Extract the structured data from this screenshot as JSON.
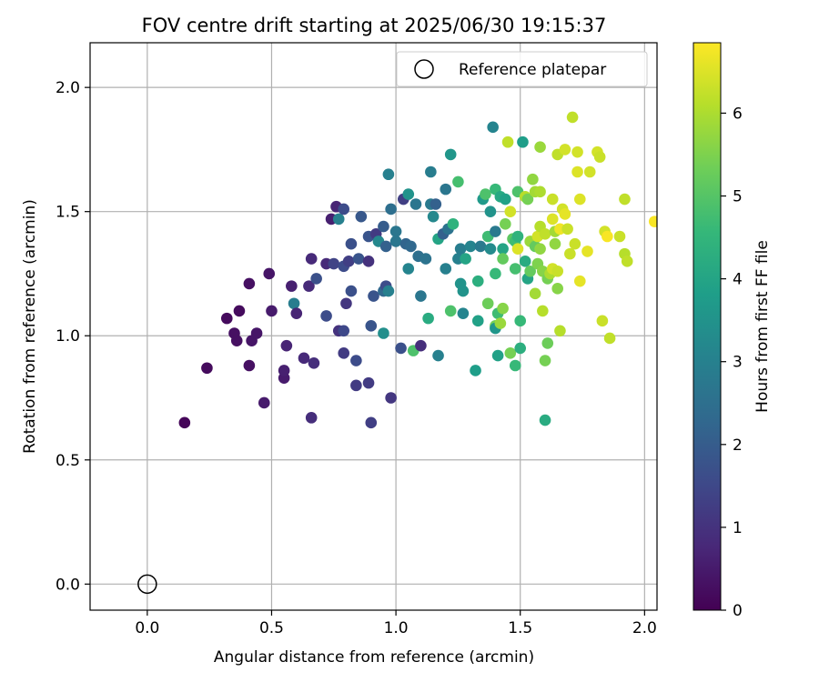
{
  "chart_data": {
    "type": "scatter",
    "title": "FOV centre drift starting at 2025/06/30 19:15:37",
    "xlabel": "Angular distance from reference (arcmin)",
    "ylabel": "Rotation from reference (arcmin)",
    "xlim": [
      -0.23,
      2.05
    ],
    "ylim": [
      -0.105,
      2.18
    ],
    "xticks": [
      "0.0",
      "0.5",
      "1.0",
      "1.5",
      "2.0"
    ],
    "yticks": [
      "0.0",
      "0.5",
      "1.0",
      "1.5",
      "2.0"
    ],
    "grid": true,
    "legend": {
      "placement": "top-right",
      "entries": [
        "Reference platepar"
      ]
    },
    "reference_point": {
      "x": 0.0,
      "y": 0.0
    },
    "colorbar": {
      "label": "Hours from first FF file",
      "colormap": "viridis",
      "range": [
        0,
        6.85
      ],
      "ticks": [
        "0",
        "1",
        "2",
        "3",
        "4",
        "5",
        "6"
      ]
    },
    "points": [
      [
        0.15,
        0.65,
        0.1
      ],
      [
        0.24,
        0.87,
        0.2
      ],
      [
        0.32,
        1.07,
        0.2
      ],
      [
        0.35,
        1.01,
        0.3
      ],
      [
        0.36,
        0.98,
        0.3
      ],
      [
        0.37,
        1.1,
        0.2
      ],
      [
        0.41,
        1.21,
        0.3
      ],
      [
        0.41,
        0.88,
        0.3
      ],
      [
        0.42,
        0.98,
        0.4
      ],
      [
        0.44,
        1.01,
        0.4
      ],
      [
        0.47,
        0.73,
        0.5
      ],
      [
        0.49,
        1.25,
        0.4
      ],
      [
        0.5,
        1.1,
        0.5
      ],
      [
        0.55,
        0.83,
        0.5
      ],
      [
        0.55,
        0.86,
        0.6
      ],
      [
        0.56,
        0.96,
        0.7
      ],
      [
        0.58,
        1.2,
        0.6
      ],
      [
        0.59,
        1.13,
        2.9
      ],
      [
        0.6,
        1.09,
        0.7
      ],
      [
        0.63,
        0.91,
        0.8
      ],
      [
        0.65,
        1.2,
        0.8
      ],
      [
        0.66,
        1.31,
        0.8
      ],
      [
        0.66,
        0.67,
        0.9
      ],
      [
        0.67,
        0.89,
        0.9
      ],
      [
        0.68,
        1.23,
        1.7
      ],
      [
        0.72,
        1.29,
        0.8
      ],
      [
        0.72,
        1.08,
        1.6
      ],
      [
        0.74,
        1.47,
        0.6
      ],
      [
        0.75,
        1.29,
        1.4
      ],
      [
        0.76,
        1.52,
        0.7
      ],
      [
        0.77,
        1.02,
        1.0
      ],
      [
        0.77,
        1.47,
        3.0
      ],
      [
        0.79,
        1.28,
        1.6
      ],
      [
        0.79,
        1.51,
        1.6
      ],
      [
        0.79,
        0.93,
        1.2
      ],
      [
        0.79,
        1.02,
        1.5
      ],
      [
        0.8,
        1.13,
        1.1
      ],
      [
        0.81,
        1.3,
        1.3
      ],
      [
        0.82,
        1.37,
        1.7
      ],
      [
        0.82,
        1.18,
        1.7
      ],
      [
        0.84,
        0.8,
        1.2
      ],
      [
        0.84,
        0.9,
        1.6
      ],
      [
        0.85,
        1.31,
        1.8
      ],
      [
        0.86,
        1.48,
        1.9
      ],
      [
        0.89,
        0.81,
        1.2
      ],
      [
        0.89,
        1.4,
        1.8
      ],
      [
        0.89,
        1.3,
        1.0
      ],
      [
        0.9,
        0.65,
        1.3
      ],
      [
        0.9,
        1.04,
        1.8
      ],
      [
        0.91,
        1.16,
        1.8
      ],
      [
        0.92,
        1.41,
        1.2
      ],
      [
        0.93,
        1.38,
        3.2
      ],
      [
        0.95,
        1.44,
        2.0
      ],
      [
        0.95,
        1.18,
        2.3
      ],
      [
        0.95,
        1.01,
        3.4
      ],
      [
        0.96,
        1.36,
        2.1
      ],
      [
        0.96,
        1.2,
        1.6
      ],
      [
        0.97,
        1.65,
        3.0
      ],
      [
        0.97,
        1.18,
        3.0
      ],
      [
        0.98,
        0.75,
        1.1
      ],
      [
        0.98,
        1.51,
        2.5
      ],
      [
        1.0,
        1.42,
        2.7
      ],
      [
        1.0,
        1.38,
        2.7
      ],
      [
        1.02,
        0.95,
        1.7
      ],
      [
        1.03,
        1.55,
        1.3
      ],
      [
        1.04,
        1.37,
        2.2
      ],
      [
        1.05,
        1.57,
        3.5
      ],
      [
        1.05,
        1.27,
        3.1
      ],
      [
        1.06,
        1.36,
        2.3
      ],
      [
        1.07,
        0.94,
        4.9
      ],
      [
        1.08,
        1.53,
        2.7
      ],
      [
        1.09,
        1.32,
        2.5
      ],
      [
        1.1,
        1.16,
        2.7
      ],
      [
        1.1,
        0.96,
        0.9
      ],
      [
        1.12,
        1.31,
        2.6
      ],
      [
        1.13,
        1.07,
        4.2
      ],
      [
        1.14,
        1.66,
        2.9
      ],
      [
        1.14,
        1.53,
        2.8
      ],
      [
        1.15,
        1.48,
        3.2
      ],
      [
        1.16,
        1.53,
        2.1
      ],
      [
        1.17,
        0.92,
        3.0
      ],
      [
        1.17,
        1.39,
        4.0
      ],
      [
        1.19,
        1.41,
        2.1
      ],
      [
        1.2,
        1.27,
        3.0
      ],
      [
        1.2,
        1.59,
        2.7
      ],
      [
        1.21,
        1.43,
        2.6
      ],
      [
        1.22,
        1.73,
        3.6
      ],
      [
        1.22,
        1.1,
        4.9
      ],
      [
        1.23,
        1.45,
        4.4
      ],
      [
        1.25,
        1.62,
        4.8
      ],
      [
        1.25,
        1.31,
        3.0
      ],
      [
        1.26,
        1.35,
        2.9
      ],
      [
        1.26,
        1.21,
        3.5
      ],
      [
        1.27,
        1.09,
        3.1
      ],
      [
        1.27,
        1.18,
        3.5
      ],
      [
        1.28,
        1.31,
        4.0
      ],
      [
        1.3,
        1.36,
        3.1
      ],
      [
        1.32,
        0.86,
        3.8
      ],
      [
        1.33,
        1.22,
        4.3
      ],
      [
        1.33,
        1.06,
        3.9
      ],
      [
        1.34,
        1.36,
        2.8
      ],
      [
        1.35,
        1.55,
        3.7
      ],
      [
        1.36,
        1.57,
        4.9
      ],
      [
        1.37,
        1.13,
        5.3
      ],
      [
        1.37,
        1.4,
        4.7
      ],
      [
        1.38,
        1.35,
        3.3
      ],
      [
        1.38,
        1.5,
        3.5
      ],
      [
        1.39,
        1.84,
        3.1
      ],
      [
        1.4,
        1.04,
        5.4
      ],
      [
        1.4,
        1.59,
        4.6
      ],
      [
        1.4,
        1.03,
        3.6
      ],
      [
        1.4,
        1.25,
        4.6
      ],
      [
        1.4,
        1.42,
        2.8
      ],
      [
        1.41,
        0.92,
        3.9
      ],
      [
        1.41,
        1.09,
        4.7
      ],
      [
        1.42,
        1.05,
        5.8
      ],
      [
        1.42,
        1.56,
        4.1
      ],
      [
        1.43,
        1.35,
        4.0
      ],
      [
        1.43,
        1.31,
        5.2
      ],
      [
        1.43,
        1.11,
        5.6
      ],
      [
        1.44,
        1.55,
        3.9
      ],
      [
        1.44,
        1.45,
        5.4
      ],
      [
        1.45,
        1.78,
        6.2
      ],
      [
        1.46,
        0.93,
        5.4
      ],
      [
        1.46,
        1.5,
        6.4
      ],
      [
        1.47,
        1.39,
        5.1
      ],
      [
        1.48,
        1.27,
        4.8
      ],
      [
        1.48,
        0.88,
        4.6
      ],
      [
        1.48,
        1.38,
        4.7
      ],
      [
        1.49,
        1.58,
        4.9
      ],
      [
        1.49,
        1.4,
        4.4
      ],
      [
        1.49,
        1.35,
        6.5
      ],
      [
        1.5,
        0.95,
        4.3
      ],
      [
        1.5,
        1.06,
        4.6
      ],
      [
        1.51,
        1.78,
        3.8
      ],
      [
        1.52,
        1.3,
        4.2
      ],
      [
        1.52,
        1.56,
        6.1
      ],
      [
        1.53,
        1.55,
        5.4
      ],
      [
        1.53,
        1.23,
        4.0
      ],
      [
        1.54,
        1.38,
        5.8
      ],
      [
        1.54,
        1.26,
        5.2
      ],
      [
        1.55,
        1.63,
        5.7
      ],
      [
        1.56,
        1.58,
        5.9
      ],
      [
        1.56,
        1.17,
        5.9
      ],
      [
        1.56,
        1.36,
        5.2
      ],
      [
        1.57,
        1.4,
        6.4
      ],
      [
        1.57,
        1.29,
        5.5
      ],
      [
        1.58,
        1.76,
        5.8
      ],
      [
        1.58,
        1.44,
        6.1
      ],
      [
        1.58,
        1.35,
        5.7
      ],
      [
        1.58,
        1.58,
        6.0
      ],
      [
        1.59,
        1.26,
        5.6
      ],
      [
        1.59,
        1.1,
        6.1
      ],
      [
        1.6,
        0.66,
        4.2
      ],
      [
        1.6,
        0.9,
        5.4
      ],
      [
        1.6,
        1.41,
        6.2
      ],
      [
        1.61,
        1.23,
        5.4
      ],
      [
        1.61,
        0.97,
        5.3
      ],
      [
        1.62,
        1.25,
        6.0
      ],
      [
        1.63,
        1.27,
        6.4
      ],
      [
        1.63,
        1.47,
        6.5
      ],
      [
        1.63,
        1.55,
        6.3
      ],
      [
        1.64,
        1.42,
        5.9
      ],
      [
        1.64,
        1.37,
        5.7
      ],
      [
        1.65,
        1.26,
        6.3
      ],
      [
        1.65,
        1.73,
        6.2
      ],
      [
        1.65,
        1.19,
        5.6
      ],
      [
        1.66,
        1.43,
        6.7
      ],
      [
        1.66,
        1.02,
        6.1
      ],
      [
        1.67,
        1.51,
        6.4
      ],
      [
        1.68,
        1.75,
        6.4
      ],
      [
        1.68,
        1.49,
        6.6
      ],
      [
        1.69,
        1.43,
        6.3
      ],
      [
        1.7,
        1.33,
        6.3
      ],
      [
        1.71,
        1.88,
        6.2
      ],
      [
        1.72,
        1.37,
        6.3
      ],
      [
        1.73,
        1.74,
        6.4
      ],
      [
        1.73,
        1.66,
        6.5
      ],
      [
        1.74,
        1.55,
        6.5
      ],
      [
        1.74,
        1.22,
        6.6
      ],
      [
        1.77,
        1.34,
        6.6
      ],
      [
        1.78,
        1.66,
        6.4
      ],
      [
        1.81,
        1.74,
        6.4
      ],
      [
        1.82,
        1.72,
        6.3
      ],
      [
        1.83,
        1.06,
        6.3
      ],
      [
        1.84,
        1.42,
        6.4
      ],
      [
        1.85,
        1.4,
        6.8
      ],
      [
        1.86,
        0.99,
        6.2
      ],
      [
        1.9,
        1.4,
        6.3
      ],
      [
        1.92,
        1.55,
        6.2
      ],
      [
        1.92,
        1.33,
        6.1
      ],
      [
        1.93,
        1.3,
        6.2
      ],
      [
        2.04,
        1.46,
        6.8
      ]
    ]
  }
}
